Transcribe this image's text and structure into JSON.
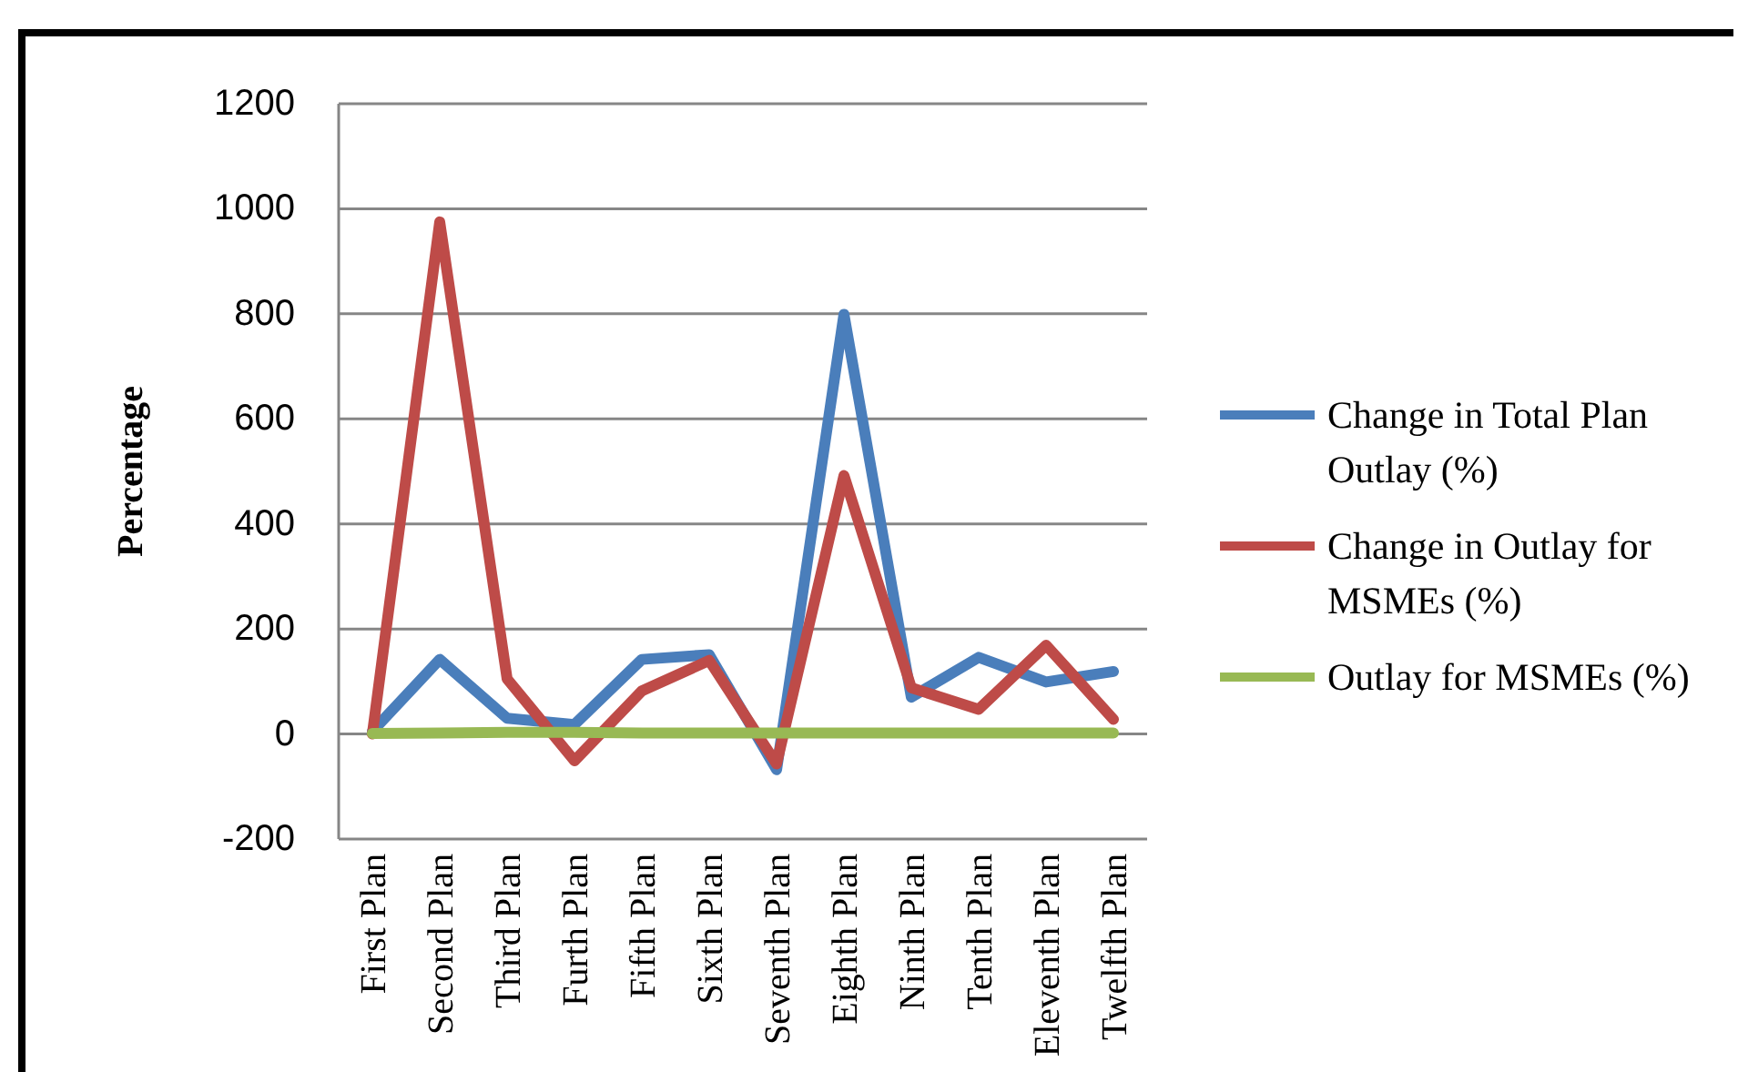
{
  "chart_data": {
    "type": "line",
    "ylabel": "Percentage",
    "categories": [
      "First Plan",
      "Second Plan",
      "Third Plan",
      "Furth Plan",
      "Fifth Plan",
      "Sixth Plan",
      "Seventh Plan",
      "Eighth Plan",
      "Ninth Plan",
      "Tenth Plan",
      "Eleventh Plan",
      "Twelfth Plan"
    ],
    "series": [
      {
        "name": "Change in Total Plan Outlay (%)",
        "color": "#4a7ebb",
        "values": [
          5,
          142,
          30,
          18,
          142,
          151,
          -68,
          799,
          70,
          146,
          99,
          119
        ]
      },
      {
        "name": "Change in Outlay for MSMEs (%)",
        "color": "#be4b48",
        "values": [
          0,
          975,
          105,
          -51,
          82,
          140,
          -57,
          492,
          88,
          47,
          169,
          28
        ]
      },
      {
        "name": "Outlay for MSMEs (%)",
        "color": "#98b954",
        "values": [
          1,
          2,
          3,
          3,
          2,
          2,
          2,
          2,
          2,
          2,
          2,
          2
        ]
      }
    ],
    "ylim": [
      -200,
      1200
    ],
    "yticks": [
      -200,
      0,
      200,
      400,
      600,
      800,
      1000,
      1200
    ],
    "grid": "y",
    "legend": "right",
    "marker": "none",
    "line_style": "solid"
  }
}
